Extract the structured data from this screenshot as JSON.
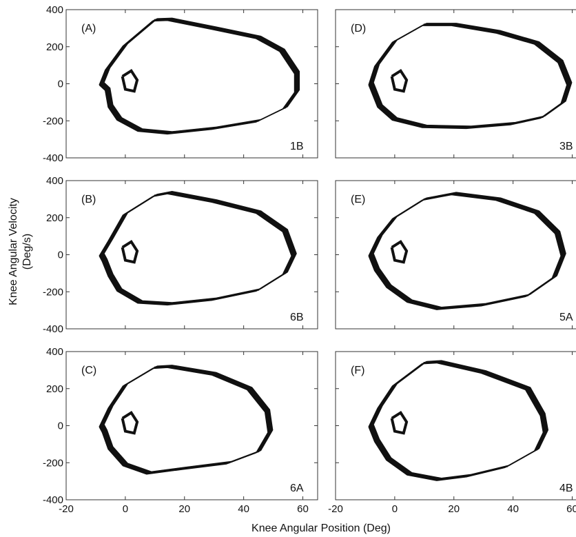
{
  "figure": {
    "xlabel": "Knee Angular Position (Deg)",
    "ylabel_line1": "Knee Angular Velocity",
    "ylabel_line2": "(Deg/s)"
  },
  "chart_data": [
    {
      "type": "line",
      "panel": "(A)",
      "code": "1B",
      "xlim": [
        -20,
        65
      ],
      "ylim": [
        -400,
        400
      ],
      "xticks": [
        -20,
        0,
        20,
        40,
        60
      ],
      "yticks": [
        400,
        200,
        0,
        -200,
        -400
      ],
      "grid": false,
      "series": [
        {
          "values_xy": [
            [
              -8,
              0
            ],
            [
              -6,
              80
            ],
            [
              0,
              210
            ],
            [
              10,
              345
            ],
            [
              15,
              348
            ],
            [
              30,
              300
            ],
            [
              45,
              250
            ],
            [
              53,
              180
            ],
            [
              58,
              60
            ],
            [
              58,
              -40
            ],
            [
              54,
              -130
            ],
            [
              45,
              -200
            ],
            [
              30,
              -240
            ],
            [
              15,
              -265
            ],
            [
              5,
              -250
            ],
            [
              -2,
              -190
            ],
            [
              -5,
              -120
            ],
            [
              -6,
              -30
            ],
            [
              -8,
              0
            ]
          ]
        }
      ]
    },
    {
      "type": "line",
      "panel": "(D)",
      "code": "3B",
      "xlim": [
        -20,
        65
      ],
      "ylim": [
        -400,
        400
      ],
      "xticks": [
        -20,
        0,
        20,
        40,
        60
      ],
      "yticks": [
        400,
        200,
        0,
        -200,
        -400
      ],
      "grid": false,
      "series": [
        {
          "values_xy": [
            [
              -8,
              0
            ],
            [
              -6,
              100
            ],
            [
              0,
              230
            ],
            [
              10,
              320
            ],
            [
              20,
              320
            ],
            [
              35,
              280
            ],
            [
              48,
              220
            ],
            [
              56,
              120
            ],
            [
              59,
              0
            ],
            [
              57,
              -100
            ],
            [
              50,
              -180
            ],
            [
              40,
              -215
            ],
            [
              25,
              -235
            ],
            [
              10,
              -230
            ],
            [
              0,
              -190
            ],
            [
              -5,
              -120
            ],
            [
              -7,
              -40
            ],
            [
              -8,
              0
            ]
          ]
        }
      ]
    },
    {
      "type": "line",
      "panel": "(B)",
      "code": "6B",
      "xlim": [
        -20,
        65
      ],
      "ylim": [
        -400,
        400
      ],
      "xticks": [
        -20,
        0,
        20,
        40,
        60
      ],
      "yticks": [
        400,
        200,
        0,
        -200,
        -400
      ],
      "grid": false,
      "series": [
        {
          "values_xy": [
            [
              -8,
              0
            ],
            [
              -5,
              80
            ],
            [
              0,
              220
            ],
            [
              10,
              320
            ],
            [
              15,
              335
            ],
            [
              30,
              290
            ],
            [
              45,
              230
            ],
            [
              54,
              130
            ],
            [
              57,
              0
            ],
            [
              54,
              -100
            ],
            [
              45,
              -190
            ],
            [
              30,
              -240
            ],
            [
              15,
              -265
            ],
            [
              5,
              -255
            ],
            [
              -2,
              -190
            ],
            [
              -5,
              -110
            ],
            [
              -7,
              -30
            ],
            [
              -8,
              0
            ]
          ]
        }
      ]
    },
    {
      "type": "line",
      "panel": "(E)",
      "code": "5A",
      "xlim": [
        -20,
        65
      ],
      "ylim": [
        -400,
        400
      ],
      "xticks": [
        -20,
        0,
        20,
        40,
        60
      ],
      "yticks": [
        400,
        200,
        0,
        -200,
        -400
      ],
      "grid": false,
      "series": [
        {
          "values_xy": [
            [
              -8,
              0
            ],
            [
              -5,
              100
            ],
            [
              0,
              200
            ],
            [
              10,
              300
            ],
            [
              20,
              330
            ],
            [
              35,
              300
            ],
            [
              48,
              230
            ],
            [
              55,
              120
            ],
            [
              57,
              0
            ],
            [
              54,
              -120
            ],
            [
              45,
              -220
            ],
            [
              30,
              -270
            ],
            [
              15,
              -290
            ],
            [
              5,
              -250
            ],
            [
              -2,
              -170
            ],
            [
              -6,
              -80
            ],
            [
              -8,
              0
            ]
          ]
        }
      ]
    },
    {
      "type": "line",
      "panel": "(C)",
      "code": "6A",
      "xlim": [
        -20,
        65
      ],
      "ylim": [
        -400,
        400
      ],
      "xticks": [
        -20,
        0,
        20,
        40,
        60
      ],
      "yticks": [
        400,
        200,
        0,
        -200,
        -400
      ],
      "grid": false,
      "series": [
        {
          "values_xy": [
            [
              -8,
              0
            ],
            [
              -5,
              100
            ],
            [
              0,
              220
            ],
            [
              10,
              315
            ],
            [
              15,
              320
            ],
            [
              30,
              280
            ],
            [
              42,
              200
            ],
            [
              48,
              80
            ],
            [
              49,
              -30
            ],
            [
              45,
              -140
            ],
            [
              35,
              -200
            ],
            [
              20,
              -230
            ],
            [
              8,
              -255
            ],
            [
              0,
              -210
            ],
            [
              -5,
              -120
            ],
            [
              -7,
              -30
            ],
            [
              -8,
              0
            ]
          ]
        }
      ]
    },
    {
      "type": "line",
      "panel": "(F)",
      "code": "4B",
      "xlim": [
        -20,
        65
      ],
      "ylim": [
        -400,
        400
      ],
      "xticks": [
        -20,
        0,
        20,
        40,
        60
      ],
      "yticks": [
        400,
        200,
        0,
        -200,
        -400
      ],
      "grid": false,
      "series": [
        {
          "values_xy": [
            [
              -8,
              0
            ],
            [
              -5,
              100
            ],
            [
              0,
              220
            ],
            [
              10,
              340
            ],
            [
              15,
              345
            ],
            [
              30,
              290
            ],
            [
              45,
              200
            ],
            [
              50,
              60
            ],
            [
              51,
              -30
            ],
            [
              48,
              -130
            ],
            [
              38,
              -220
            ],
            [
              25,
              -270
            ],
            [
              15,
              -290
            ],
            [
              5,
              -260
            ],
            [
              -2,
              -180
            ],
            [
              -6,
              -80
            ],
            [
              -8,
              0
            ]
          ]
        }
      ]
    }
  ]
}
